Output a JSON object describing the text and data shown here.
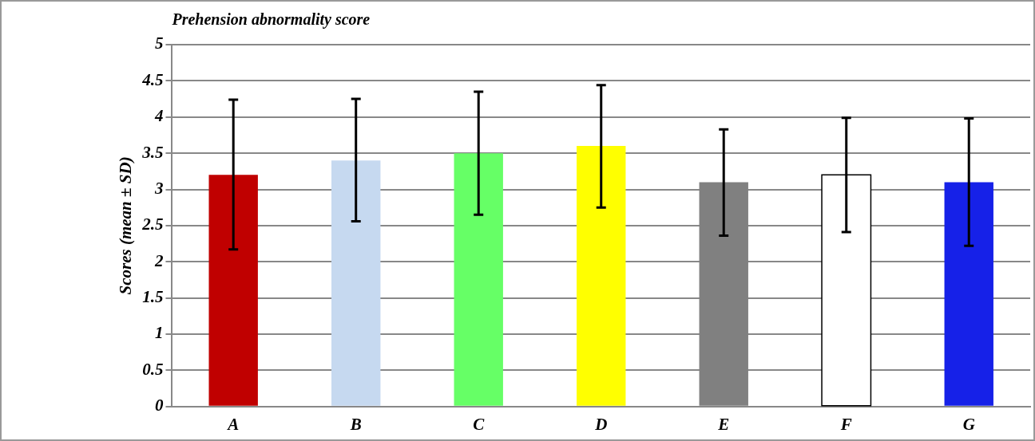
{
  "chart_data": {
    "type": "bar",
    "title": "Prehension abnormality score",
    "ylabel": "Scores (mean ± SD)",
    "categories": [
      "A",
      "B",
      "C",
      "D",
      "E",
      "F",
      "G"
    ],
    "values": [
      3.2,
      3.4,
      3.5,
      3.6,
      3.1,
      3.2,
      3.1
    ],
    "colors": [
      "#c00000",
      "#c6d9f0",
      "#66ff66",
      "#ffff00",
      "#808080",
      "#ffffff",
      "#1621e8"
    ],
    "errors": [
      [
        2.17,
        4.24
      ],
      [
        2.56,
        4.25
      ],
      [
        2.65,
        4.35
      ],
      [
        2.75,
        4.44
      ],
      [
        2.36,
        3.83
      ],
      [
        2.41,
        3.99
      ],
      [
        2.22,
        3.98
      ]
    ],
    "ylim": [
      0,
      5
    ],
    "yticks": [
      0,
      0.5,
      1,
      1.5,
      2,
      2.5,
      3,
      3.5,
      4,
      4.5,
      5
    ],
    "grid": "y",
    "legend": false
  }
}
